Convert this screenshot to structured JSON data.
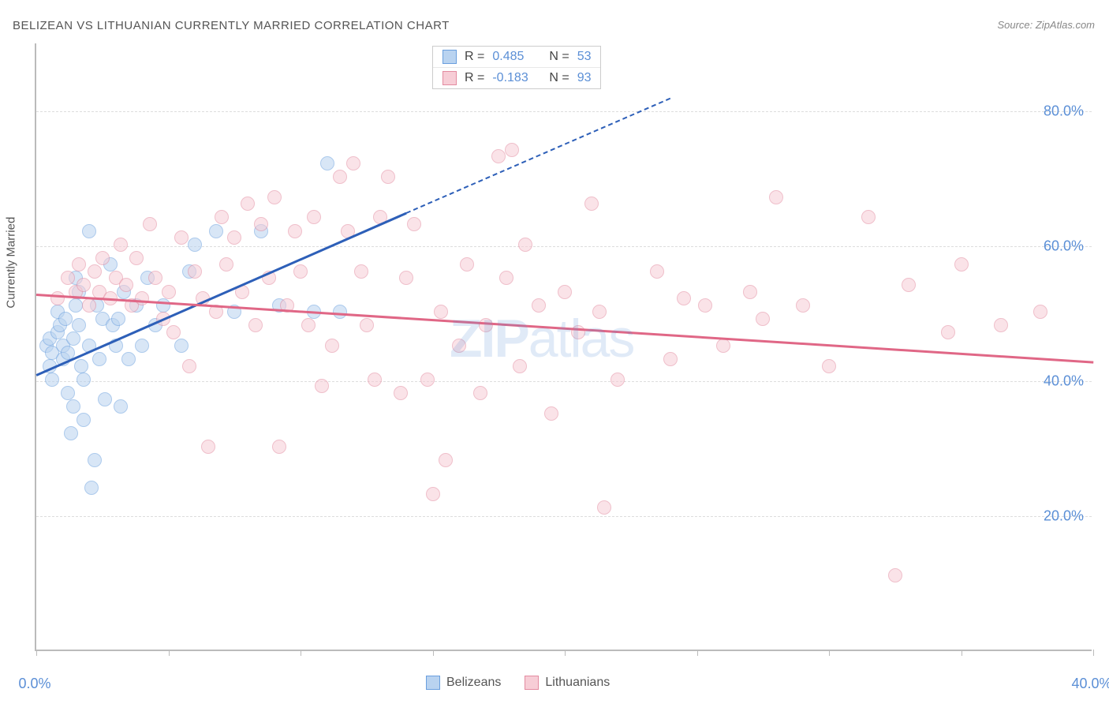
{
  "title": "BELIZEAN VS LITHUANIAN CURRENTLY MARRIED CORRELATION CHART",
  "source": "Source: ZipAtlas.com",
  "ylabel": "Currently Married",
  "watermark": {
    "bold": "ZIP",
    "light": "atlas"
  },
  "chart": {
    "type": "scatter",
    "background_color": "#ffffff",
    "grid_color": "#dddddd",
    "axis_color": "#bbbbbb",
    "tick_label_color": "#5b8fd6",
    "text_color": "#555555",
    "xlim": [
      0,
      40
    ],
    "ylim": [
      0,
      90
    ],
    "x_ticks": [
      0,
      5,
      10,
      15,
      20,
      25,
      30,
      35,
      40
    ],
    "x_tick_labels": {
      "0": "0.0%",
      "40": "40.0%"
    },
    "y_gridlines": [
      20,
      40,
      60,
      80
    ],
    "y_tick_labels": {
      "20": "20.0%",
      "40": "40.0%",
      "60": "60.0%",
      "80": "80.0%"
    },
    "marker_radius": 9,
    "marker_opacity": 0.55,
    "series": [
      {
        "name": "Belizeans",
        "fill": "#b9d3f0",
        "stroke": "#6a9fde",
        "R": "0.485",
        "N": "53",
        "trend": {
          "x1": 0,
          "y1": 41,
          "x2": 14,
          "y2": 65,
          "color": "#2d5fb8",
          "width": 2.5,
          "extrap": {
            "x1": 14,
            "y1": 65,
            "x2": 24,
            "y2": 82,
            "dash": true
          }
        },
        "points": [
          [
            0.4,
            45
          ],
          [
            0.5,
            46
          ],
          [
            0.6,
            44
          ],
          [
            0.5,
            42
          ],
          [
            0.6,
            40
          ],
          [
            0.8,
            47
          ],
          [
            0.8,
            50
          ],
          [
            0.9,
            48
          ],
          [
            1.0,
            43
          ],
          [
            1.0,
            45
          ],
          [
            1.1,
            49
          ],
          [
            1.2,
            44
          ],
          [
            1.2,
            38
          ],
          [
            1.3,
            32
          ],
          [
            1.4,
            36
          ],
          [
            1.4,
            46
          ],
          [
            1.5,
            51
          ],
          [
            1.5,
            55
          ],
          [
            1.6,
            53
          ],
          [
            1.6,
            48
          ],
          [
            1.7,
            42
          ],
          [
            1.8,
            34
          ],
          [
            1.8,
            40
          ],
          [
            2.0,
            62
          ],
          [
            2.0,
            45
          ],
          [
            2.1,
            24
          ],
          [
            2.2,
            28
          ],
          [
            2.3,
            51
          ],
          [
            2.4,
            43
          ],
          [
            2.5,
            49
          ],
          [
            2.6,
            37
          ],
          [
            2.8,
            57
          ],
          [
            2.9,
            48
          ],
          [
            3.0,
            45
          ],
          [
            3.1,
            49
          ],
          [
            3.2,
            36
          ],
          [
            3.3,
            53
          ],
          [
            3.5,
            43
          ],
          [
            3.8,
            51
          ],
          [
            4.0,
            45
          ],
          [
            4.2,
            55
          ],
          [
            4.5,
            48
          ],
          [
            4.8,
            51
          ],
          [
            5.5,
            45
          ],
          [
            5.8,
            56
          ],
          [
            6.0,
            60
          ],
          [
            6.8,
            62
          ],
          [
            7.5,
            50
          ],
          [
            8.5,
            62
          ],
          [
            9.2,
            51
          ],
          [
            10.5,
            50
          ],
          [
            11.0,
            72
          ],
          [
            11.5,
            50
          ]
        ]
      },
      {
        "name": "Lithuanians",
        "fill": "#f7cdd6",
        "stroke": "#e38ba0",
        "R": "-0.183",
        "N": "93",
        "trend": {
          "x1": 0,
          "y1": 53,
          "x2": 40,
          "y2": 43,
          "color": "#e06786",
          "width": 2.5
        },
        "points": [
          [
            0.8,
            52
          ],
          [
            1.2,
            55
          ],
          [
            1.5,
            53
          ],
          [
            1.6,
            57
          ],
          [
            1.8,
            54
          ],
          [
            2.0,
            51
          ],
          [
            2.2,
            56
          ],
          [
            2.4,
            53
          ],
          [
            2.5,
            58
          ],
          [
            2.8,
            52
          ],
          [
            3.0,
            55
          ],
          [
            3.2,
            60
          ],
          [
            3.4,
            54
          ],
          [
            3.6,
            51
          ],
          [
            3.8,
            58
          ],
          [
            4.0,
            52
          ],
          [
            4.3,
            63
          ],
          [
            4.5,
            55
          ],
          [
            4.8,
            49
          ],
          [
            5.0,
            53
          ],
          [
            5.2,
            47
          ],
          [
            5.5,
            61
          ],
          [
            5.8,
            42
          ],
          [
            6.0,
            56
          ],
          [
            6.3,
            52
          ],
          [
            6.5,
            30
          ],
          [
            6.8,
            50
          ],
          [
            7.0,
            64
          ],
          [
            7.2,
            57
          ],
          [
            7.5,
            61
          ],
          [
            7.8,
            53
          ],
          [
            8.0,
            66
          ],
          [
            8.3,
            48
          ],
          [
            8.5,
            63
          ],
          [
            8.8,
            55
          ],
          [
            9.0,
            67
          ],
          [
            9.2,
            30
          ],
          [
            9.5,
            51
          ],
          [
            9.8,
            62
          ],
          [
            10.0,
            56
          ],
          [
            10.3,
            48
          ],
          [
            10.5,
            64
          ],
          [
            10.8,
            39
          ],
          [
            11.2,
            45
          ],
          [
            11.5,
            70
          ],
          [
            11.8,
            62
          ],
          [
            12.0,
            72
          ],
          [
            12.3,
            56
          ],
          [
            12.5,
            48
          ],
          [
            12.8,
            40
          ],
          [
            13.0,
            64
          ],
          [
            13.3,
            70
          ],
          [
            13.8,
            38
          ],
          [
            14.0,
            55
          ],
          [
            14.3,
            63
          ],
          [
            14.8,
            40
          ],
          [
            15.0,
            23
          ],
          [
            15.3,
            50
          ],
          [
            15.5,
            28
          ],
          [
            16.0,
            45
          ],
          [
            16.3,
            57
          ],
          [
            16.8,
            38
          ],
          [
            17.0,
            48
          ],
          [
            17.5,
            73
          ],
          [
            17.8,
            55
          ],
          [
            18.0,
            74
          ],
          [
            18.3,
            42
          ],
          [
            18.5,
            60
          ],
          [
            19.0,
            51
          ],
          [
            19.5,
            35
          ],
          [
            20.0,
            53
          ],
          [
            20.5,
            47
          ],
          [
            21.0,
            66
          ],
          [
            21.3,
            50
          ],
          [
            21.5,
            21
          ],
          [
            22.0,
            40
          ],
          [
            23.5,
            56
          ],
          [
            24.0,
            43
          ],
          [
            24.5,
            52
          ],
          [
            25.3,
            51
          ],
          [
            26.0,
            45
          ],
          [
            27.0,
            53
          ],
          [
            27.5,
            49
          ],
          [
            28.0,
            67
          ],
          [
            29.0,
            51
          ],
          [
            30.0,
            42
          ],
          [
            31.5,
            64
          ],
          [
            32.5,
            11
          ],
          [
            33.0,
            54
          ],
          [
            34.5,
            47
          ],
          [
            35.0,
            57
          ],
          [
            36.5,
            48
          ],
          [
            38.0,
            50
          ]
        ]
      }
    ]
  },
  "legend_bottom": [
    {
      "label": "Belizeans",
      "fill": "#b9d3f0",
      "stroke": "#6a9fde"
    },
    {
      "label": "Lithuanians",
      "fill": "#f7cdd6",
      "stroke": "#e38ba0"
    }
  ]
}
